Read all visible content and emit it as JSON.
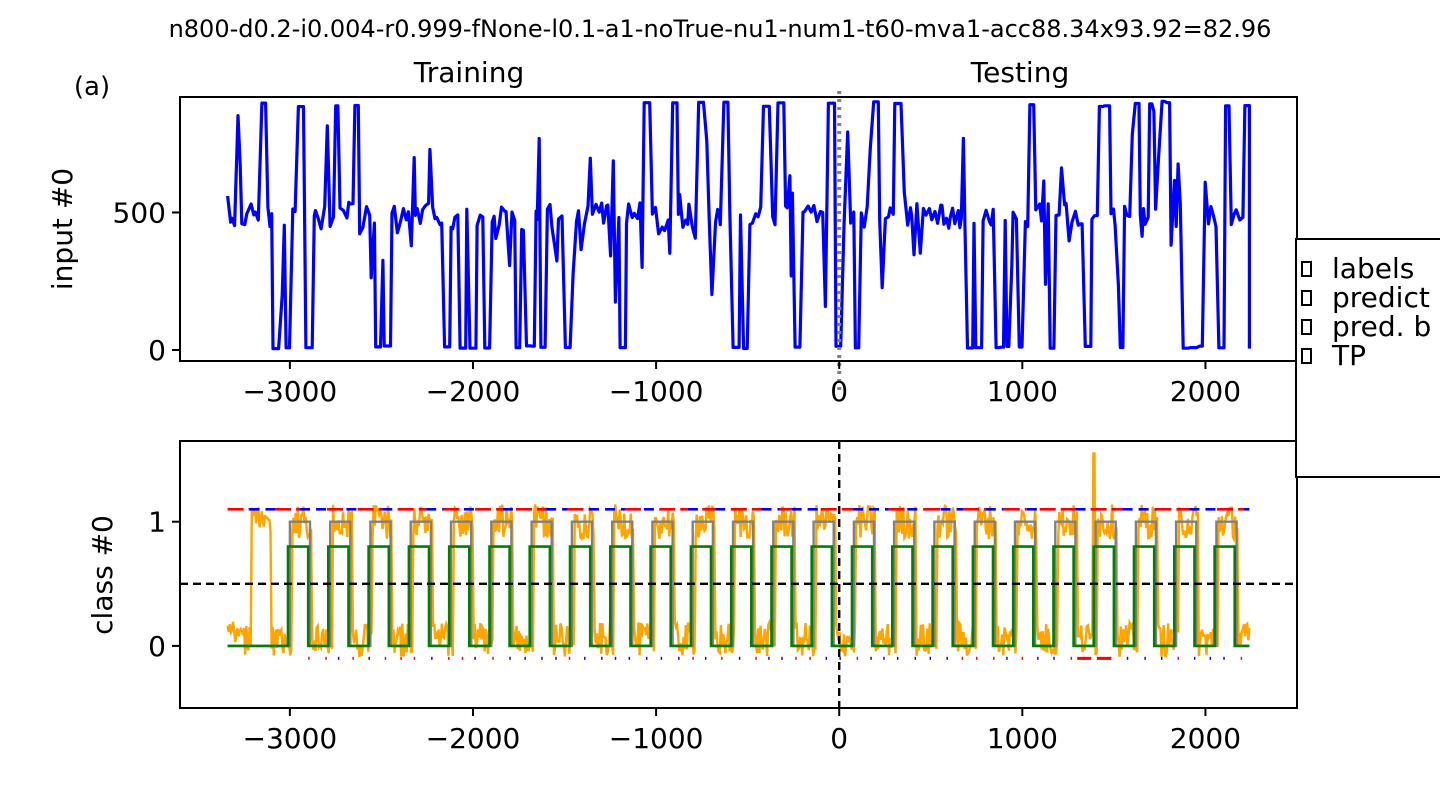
{
  "figure": {
    "suptitle": "n800-d0.2-i0.004-r0.999-fNone-l0.1-a1-noTrue-nu1-num1-t60-mva1-acc88.34x93.92=82.96",
    "panel_label": "(a)",
    "colors": {
      "input": "#0000ff",
      "orange": "#ffa500",
      "gray": "#808080",
      "green": "#008000",
      "red": "#ff0000",
      "blue": "#0000ff",
      "black": "#000000"
    }
  },
  "legend": {
    "placement": "right, partially outside figure",
    "items": [
      {
        "label": "labels"
      },
      {
        "label": "predict"
      },
      {
        "label": "pred. b"
      },
      {
        "label": "TP"
      }
    ]
  },
  "chart_data": [
    {
      "type": "line",
      "title_left": "Training",
      "title_right": "Testing",
      "xlabel": "",
      "ylabel": "input #0",
      "xlim": [
        -3600,
        2500
      ],
      "ylim": [
        -40,
        920
      ],
      "xticks": [
        -3000,
        -2000,
        -1000,
        0,
        1000,
        2000
      ],
      "xtick_labels": [
        "−3000",
        "−2000",
        "−1000",
        "0",
        "1000",
        "2000"
      ],
      "yticks": [
        0,
        500
      ],
      "ytick_labels": [
        "0",
        "500"
      ],
      "vline": {
        "x": 0,
        "style": "dotted",
        "color": "gray"
      },
      "series": [
        {
          "color": "blue",
          "x_range": [
            -3340,
            2240
          ],
          "y_min": 5,
          "y_max": 905,
          "typical": 490
        }
      ]
    },
    {
      "type": "line",
      "xlabel": "",
      "ylabel": "class #0",
      "xlim": [
        -3600,
        2500
      ],
      "ylim": [
        -0.5,
        1.65
      ],
      "xticks": [
        -3000,
        -2000,
        -1000,
        0,
        1000,
        2000
      ],
      "xtick_labels": [
        "−3000",
        "−2000",
        "−1000",
        "0",
        "1000",
        "2000"
      ],
      "yticks": [
        0,
        1
      ],
      "ytick_labels": [
        "0",
        "1"
      ],
      "hline": {
        "y": 0.5,
        "style": "dashed",
        "color": "black"
      },
      "vline": {
        "x": 0,
        "style": "dashed",
        "color": "black"
      },
      "cycle_period": 220,
      "high_duration": 110,
      "series": [
        {
          "name_key": "labels",
          "color": "gray",
          "levels": [
            0,
            1
          ]
        },
        {
          "name_key": "pred. b",
          "color": "green",
          "levels": [
            0,
            0.8
          ]
        },
        {
          "name_key": "predict",
          "color": "orange",
          "levels": [
            0,
            1.55
          ]
        },
        {
          "name_key": "TP",
          "color": "red",
          "levels": [
            -0.1,
            1.1
          ]
        }
      ]
    }
  ]
}
